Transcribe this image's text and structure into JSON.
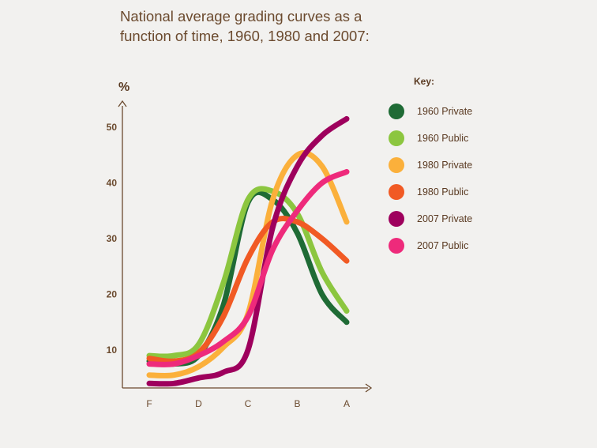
{
  "title_line1": "National average grading curves as a",
  "title_line2": "function of time, 1960, 1980 and 2007:",
  "legend_title": "Key:",
  "chart_data": {
    "type": "line",
    "ylabel": "%",
    "categories": [
      "F",
      "D",
      "C",
      "B",
      "A"
    ],
    "y_ticks": [
      10,
      20,
      30,
      40,
      50
    ],
    "ylim": [
      3,
      55
    ],
    "grid": false,
    "legend_position": "right",
    "series": [
      {
        "name": "1960 Private",
        "color": "#1f6b35",
        "x": [
          0,
          0.5,
          1,
          1.5,
          2,
          2.5,
          3,
          3.5,
          4
        ],
        "values": [
          8,
          7.5,
          9,
          18,
          36.5,
          37,
          31,
          20,
          15
        ]
      },
      {
        "name": "1960 Public",
        "color": "#8cc63f",
        "x": [
          0,
          0.5,
          1,
          1.5,
          2,
          2.5,
          3,
          3.5,
          4
        ],
        "values": [
          9,
          9,
          11,
          22,
          37,
          38.5,
          34.5,
          24,
          17
        ]
      },
      {
        "name": "1980 Private",
        "color": "#fbb03b",
        "x": [
          0,
          0.5,
          1,
          1.5,
          2,
          2.5,
          3,
          3.5,
          4
        ],
        "values": [
          5.5,
          5.5,
          7,
          10.5,
          16.5,
          37,
          45,
          43,
          33
        ]
      },
      {
        "name": "1980 Public",
        "color": "#f15a24",
        "x": [
          0,
          0.5,
          1,
          1.5,
          2,
          2.5,
          3,
          3.5,
          4
        ],
        "values": [
          8.5,
          8,
          9.5,
          16,
          26.5,
          33,
          33,
          30,
          26
        ]
      },
      {
        "name": "2007 Private",
        "color": "#9e005d",
        "x": [
          0,
          0.5,
          1,
          1.5,
          2,
          2.5,
          3,
          3.5,
          4
        ],
        "values": [
          4,
          4,
          5,
          6,
          10,
          32,
          43,
          48.5,
          51.5
        ]
      },
      {
        "name": "2007 Public",
        "color": "#ee2a7b",
        "x": [
          0,
          0.5,
          1,
          1.5,
          2,
          2.5,
          3,
          3.5,
          4
        ],
        "values": [
          7.5,
          7.5,
          9,
          11.5,
          16,
          28,
          35,
          40,
          42
        ]
      }
    ]
  }
}
